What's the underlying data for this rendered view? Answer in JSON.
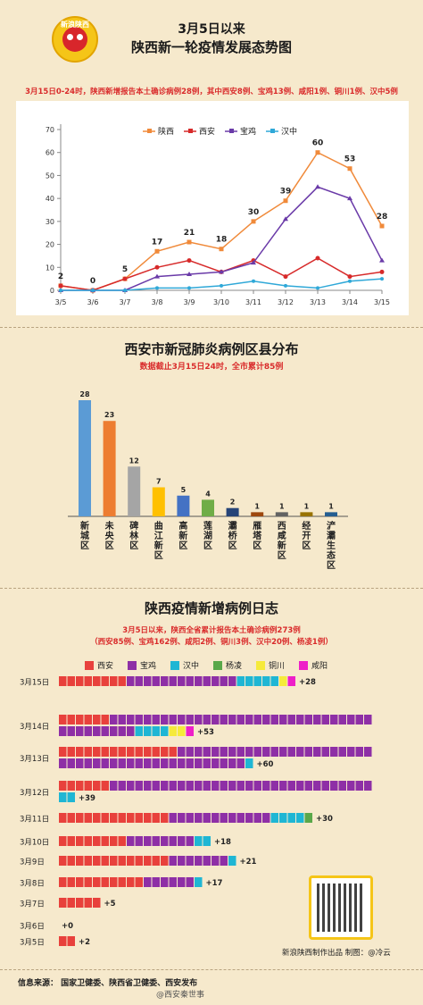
{
  "header": {
    "logo_text": "新浪陕西",
    "title_line1": "3月5日以来",
    "title_line2": "陕西新一轮疫情发展态势图",
    "summary": "3月15日0-24时，陕西新增报告本土确诊病例28例，其中西安8例、宝鸡13例、咸阳1例、铜川1例、汉中5例"
  },
  "chart_data": [
    {
      "type": "line",
      "categories": [
        "3/5",
        "3/6",
        "3/7",
        "3/8",
        "3/9",
        "3/10",
        "3/11",
        "3/12",
        "3/13",
        "3/14",
        "3/15"
      ],
      "ylim": [
        0,
        70
      ],
      "yticks": [
        0,
        10,
        20,
        30,
        40,
        50,
        60,
        70
      ],
      "legend_position": "top",
      "series": [
        {
          "name": "陕西",
          "color": "#f08a3a",
          "values": [
            2,
            0,
            5,
            17,
            21,
            18,
            30,
            39,
            60,
            53,
            28
          ],
          "labels": [
            "2",
            "0",
            "5",
            "17",
            "21",
            "18",
            "30",
            "39",
            "60",
            "53",
            "28"
          ]
        },
        {
          "name": "西安",
          "color": "#d72a2a",
          "values": [
            2,
            0,
            5,
            10,
            13,
            8,
            13,
            6,
            14,
            6,
            8
          ]
        },
        {
          "name": "宝鸡",
          "color": "#6a3aa8",
          "values": [
            0,
            0,
            0,
            6,
            7,
            8,
            12,
            31,
            45,
            40,
            13
          ]
        },
        {
          "name": "汉中",
          "color": "#2fa8d8",
          "values": [
            0,
            0,
            0,
            1,
            1,
            2,
            4,
            2,
            1,
            4,
            5
          ]
        }
      ]
    },
    {
      "type": "bar",
      "title": "西安市新冠肺炎病例区县分布",
      "subtitle": "数据截止3月15日24时，全市累计85例",
      "categories": [
        "新城区",
        "未央区",
        "碑林区",
        "曲江新区",
        "高新区",
        "莲湖区",
        "灞桥区",
        "雁塔区",
        "西咸新区",
        "经开区",
        "浐灞生态区"
      ],
      "values": [
        28,
        23,
        12,
        7,
        5,
        4,
        2,
        1,
        1,
        1,
        1
      ],
      "colors": [
        "#5b9bd5",
        "#ed7d31",
        "#a5a5a5",
        "#ffc000",
        "#4472c4",
        "#70ad47",
        "#264478",
        "#9e480e",
        "#636363",
        "#997300",
        "#255e91"
      ]
    },
    {
      "type": "bar",
      "title": "陕西疫情新增病例日志",
      "subtitle_line1": "3月5日以来，陕西全省累计报告本土确诊病例273例",
      "subtitle_line2": "（西安85例、宝鸡162例、咸阳2例、铜川3例、汉中20例、杨凌1例）",
      "legend": [
        {
          "name": "西安",
          "color": "#e8413c"
        },
        {
          "name": "宝鸡",
          "color": "#8e2fa6"
        },
        {
          "name": "汉中",
          "color": "#1fb6d4"
        },
        {
          "name": "杨凌",
          "color": "#5aa84a"
        },
        {
          "name": "铜川",
          "color": "#f6ea3a"
        },
        {
          "name": "咸阳",
          "color": "#ee1fc8"
        }
      ],
      "rows": [
        {
          "date": "3月15日",
          "total_label": "+28",
          "counts": {
            "西安": 8,
            "宝鸡": 13,
            "汉中": 5,
            "杨凌": 0,
            "铜川": 1,
            "咸阳": 1
          }
        },
        {
          "date": "3月14日",
          "total_label": "+53",
          "counts": {
            "西安": 6,
            "宝鸡": 40,
            "汉中": 4,
            "杨凌": 0,
            "铜川": 2,
            "咸阳": 1
          }
        },
        {
          "date": "3月13日",
          "total_label": "+60",
          "counts": {
            "西安": 14,
            "宝鸡": 45,
            "汉中": 1,
            "杨凌": 0,
            "铜川": 0,
            "咸阳": 0
          }
        },
        {
          "date": "3月12日",
          "total_label": "+39",
          "counts": {
            "西安": 6,
            "宝鸡": 31,
            "汉中": 2,
            "杨凌": 0,
            "铜川": 0,
            "咸阳": 0
          }
        },
        {
          "date": "3月11日",
          "total_label": "+30",
          "counts": {
            "西安": 13,
            "宝鸡": 12,
            "汉中": 4,
            "杨凌": 1,
            "铜川": 0,
            "咸阳": 0
          }
        },
        {
          "date": "3月10日",
          "total_label": "+18",
          "counts": {
            "西安": 8,
            "宝鸡": 8,
            "汉中": 2,
            "杨凌": 0,
            "铜川": 0,
            "咸阳": 0
          }
        },
        {
          "date": "3月9日",
          "total_label": "+21",
          "counts": {
            "西安": 13,
            "宝鸡": 7,
            "汉中": 1,
            "杨凌": 0,
            "铜川": 0,
            "咸阳": 0
          }
        },
        {
          "date": "3月8日",
          "total_label": "+17",
          "counts": {
            "西安": 10,
            "宝鸡": 6,
            "汉中": 1,
            "杨凌": 0,
            "铜川": 0,
            "咸阳": 0
          }
        },
        {
          "date": "3月7日",
          "total_label": "+5",
          "counts": {
            "西安": 5,
            "宝鸡": 0,
            "汉中": 0,
            "杨凌": 0,
            "铜川": 0,
            "咸阳": 0
          }
        },
        {
          "date": "3月6日",
          "total_label": "+0",
          "counts": {
            "西安": 0,
            "宝鸡": 0,
            "汉中": 0,
            "杨凌": 0,
            "铜川": 0,
            "咸阳": 0
          }
        },
        {
          "date": "3月5日",
          "total_label": "+2",
          "counts": {
            "西安": 2,
            "宝鸡": 0,
            "汉中": 0,
            "杨凌": 0,
            "铜川": 0,
            "咸阳": 0
          }
        }
      ]
    }
  ],
  "footer": {
    "credit": "新浪陕西制作出品 制图：@冷云",
    "source": "信息来源： 国家卫健委、陕西省卫健委、西安发布",
    "watermark": "@西安秦世事"
  }
}
